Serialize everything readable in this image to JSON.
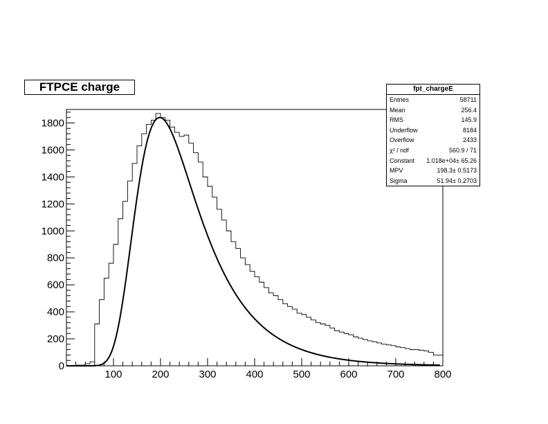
{
  "chart_data": {
    "type": "histogram",
    "title": "FTPCE charge",
    "xlabel": "",
    "ylabel": "",
    "xlim": [
      0,
      800
    ],
    "ylim": [
      0,
      1900
    ],
    "x_ticks": [
      "100",
      "200",
      "300",
      "400",
      "500",
      "600",
      "700",
      "800"
    ],
    "y_ticks": [
      "0",
      "200",
      "400",
      "600",
      "800",
      "1000",
      "1200",
      "1400",
      "1600",
      "1800"
    ],
    "bin_width": 10,
    "bin_edges_start": 0,
    "histogram_values": [
      0,
      0,
      5,
      5,
      15,
      30,
      310,
      490,
      650,
      760,
      900,
      1090,
      1220,
      1370,
      1500,
      1630,
      1720,
      1790,
      1820,
      1870,
      1840,
      1820,
      1770,
      1730,
      1700,
      1710,
      1650,
      1580,
      1510,
      1400,
      1330,
      1250,
      1160,
      1080,
      1000,
      920,
      870,
      800,
      750,
      700,
      660,
      620,
      580,
      540,
      520,
      490,
      460,
      440,
      420,
      390,
      380,
      360,
      340,
      320,
      310,
      300,
      280,
      260,
      250,
      240,
      230,
      215,
      205,
      195,
      185,
      178,
      170,
      160,
      155,
      150,
      140,
      135,
      128,
      120,
      120,
      115,
      110,
      100,
      80,
      80
    ],
    "fit": {
      "function": "landau",
      "constant": 10180,
      "mpv": 198.3,
      "sigma": 51.94,
      "peak_approx": 1840
    },
    "legend": "top-right",
    "stats": {
      "name": "fpt_chargeE",
      "rows": [
        {
          "label": "Entries",
          "value": "58711"
        },
        {
          "label": "Mean",
          "value": "256.4"
        },
        {
          "label": "RMS",
          "value": "145.9"
        },
        {
          "label": "Underflow",
          "value": "8184"
        },
        {
          "label": "Overflow",
          "value": "2433"
        },
        {
          "label": "χ² / ndf",
          "value": "560.9 / 71"
        },
        {
          "label": "Constant",
          "value": "1.018e+04± 65.26"
        },
        {
          "label": "MPV",
          "value": "198.3± 0.5173"
        },
        {
          "label": "Sigma",
          "value": "51.94± 0.2703"
        }
      ]
    }
  }
}
